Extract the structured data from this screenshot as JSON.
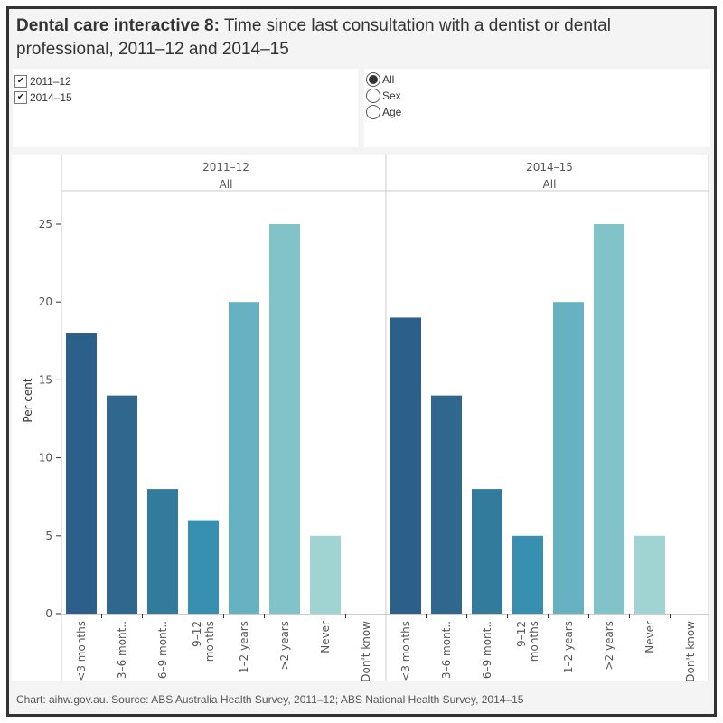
{
  "title": {
    "bold": "Dental care interactive 8:",
    "rest": " Time since last consultation with a dentist or dental professional, 2011–12 and 2014–15"
  },
  "filters": {
    "years": [
      {
        "label": "2011–12",
        "checked": true
      },
      {
        "label": "2014–15",
        "checked": true
      }
    ],
    "breakdown": [
      {
        "label": "All",
        "selected": true
      },
      {
        "label": "Sex",
        "selected": false
      },
      {
        "label": "Age",
        "selected": false
      }
    ]
  },
  "footer": "Chart: aihw.gov.au. Source: ABS Australia Health Survey, 2011–12; ABS National Health Survey, 2014–15",
  "colors": {
    "bars": [
      "#2c5f8a",
      "#30678f",
      "#337b9c",
      "#3890b0",
      "#66b2c3",
      "#82c3ca",
      "#9fd4d2",
      "#c8e6e3"
    ],
    "grid": "#cccccc",
    "text": "#555555"
  },
  "chart_data": {
    "type": "bar",
    "title": "Time since last consultation with a dentist or dental professional",
    "ylabel": "Per cent",
    "xlabel": "",
    "ylim": [
      0,
      26.5
    ],
    "yticks": [
      0,
      5,
      10,
      15,
      20,
      25
    ],
    "grid": false,
    "categories": [
      "<3 months",
      "3–6 mont..",
      "6–9 mont..",
      "9–12 months",
      "1–2 years",
      ">2 years",
      "Never",
      "Don't know"
    ],
    "category_label_lines": [
      [
        "<3 months"
      ],
      [
        "3–6 mont.."
      ],
      [
        "6–9 mont.."
      ],
      [
        "9–12",
        "months"
      ],
      [
        "1–2 years"
      ],
      [
        ">2 years"
      ],
      [
        "Never"
      ],
      [
        "Don't know"
      ]
    ],
    "panels": [
      {
        "header": "2011–12",
        "subheader": "All",
        "values": [
          18,
          14,
          8,
          6,
          20,
          25,
          5,
          0
        ]
      },
      {
        "header": "2014–15",
        "subheader": "All",
        "values": [
          19,
          14,
          8,
          5,
          20,
          25,
          5,
          0
        ]
      }
    ]
  }
}
